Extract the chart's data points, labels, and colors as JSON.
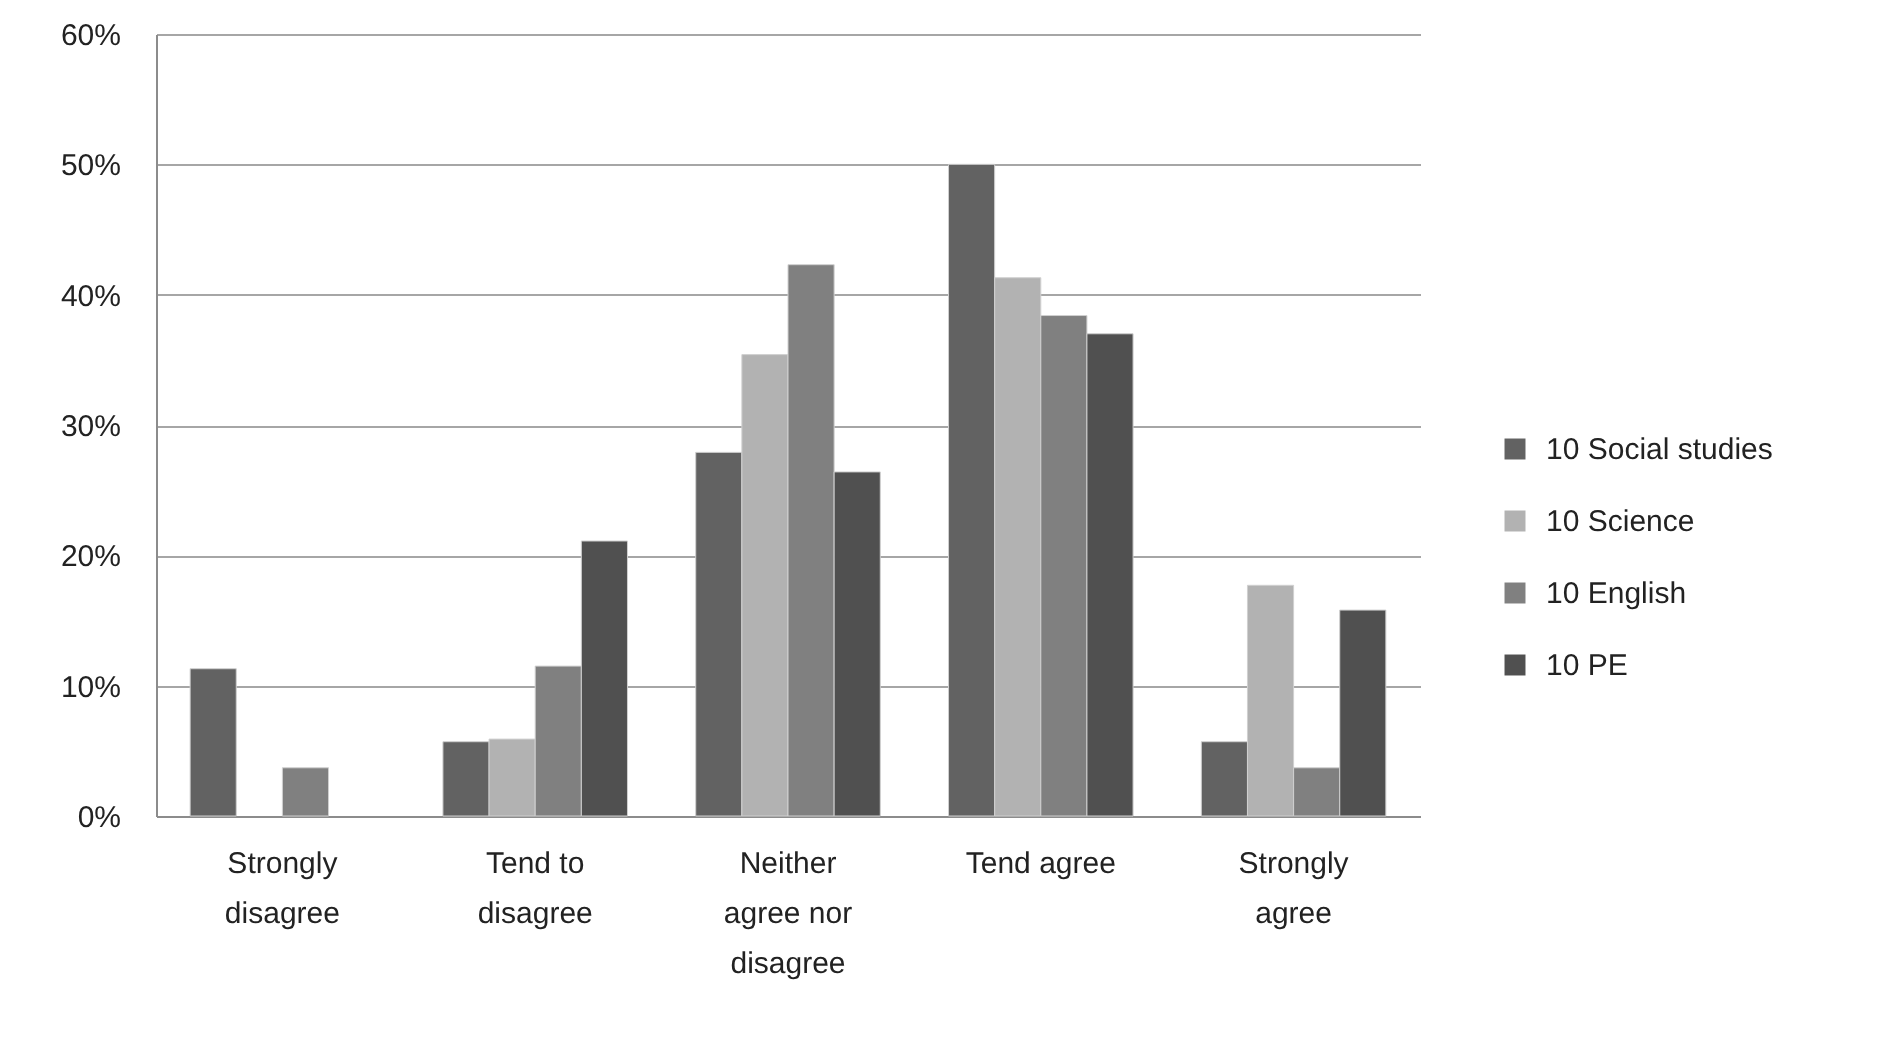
{
  "chart_data": {
    "type": "bar",
    "categories": [
      "Strongly disagree",
      "Tend to disagree",
      "Neither agree nor disagree",
      "Tend agree",
      "Strongly agree"
    ],
    "series": [
      {
        "name": "10 Social studies",
        "color": "#626262",
        "values": [
          11.3,
          5.7,
          27.9,
          50.0,
          5.7
        ]
      },
      {
        "name": "10 Science",
        "color": "#b2b2b2",
        "values": [
          null,
          5.9,
          35.4,
          41.3,
          17.7
        ]
      },
      {
        "name": "10 English",
        "color": "#808080",
        "values": [
          3.7,
          11.5,
          42.3,
          38.4,
          3.7
        ]
      },
      {
        "name": "10 PE",
        "color": "#505050",
        "values": [
          null,
          21.1,
          26.4,
          37.0,
          15.8
        ]
      }
    ],
    "ylim": [
      0,
      60
    ],
    "yticks": [
      {
        "value": 0,
        "label": "0%"
      },
      {
        "value": 10,
        "label": "10%"
      },
      {
        "value": 20,
        "label": "20%"
      },
      {
        "value": 30,
        "label": "30%"
      },
      {
        "value": 40,
        "label": "40%"
      },
      {
        "value": 50,
        "label": "50%"
      },
      {
        "value": 60,
        "label": "60%"
      }
    ],
    "grid": "y",
    "legend": "right"
  }
}
